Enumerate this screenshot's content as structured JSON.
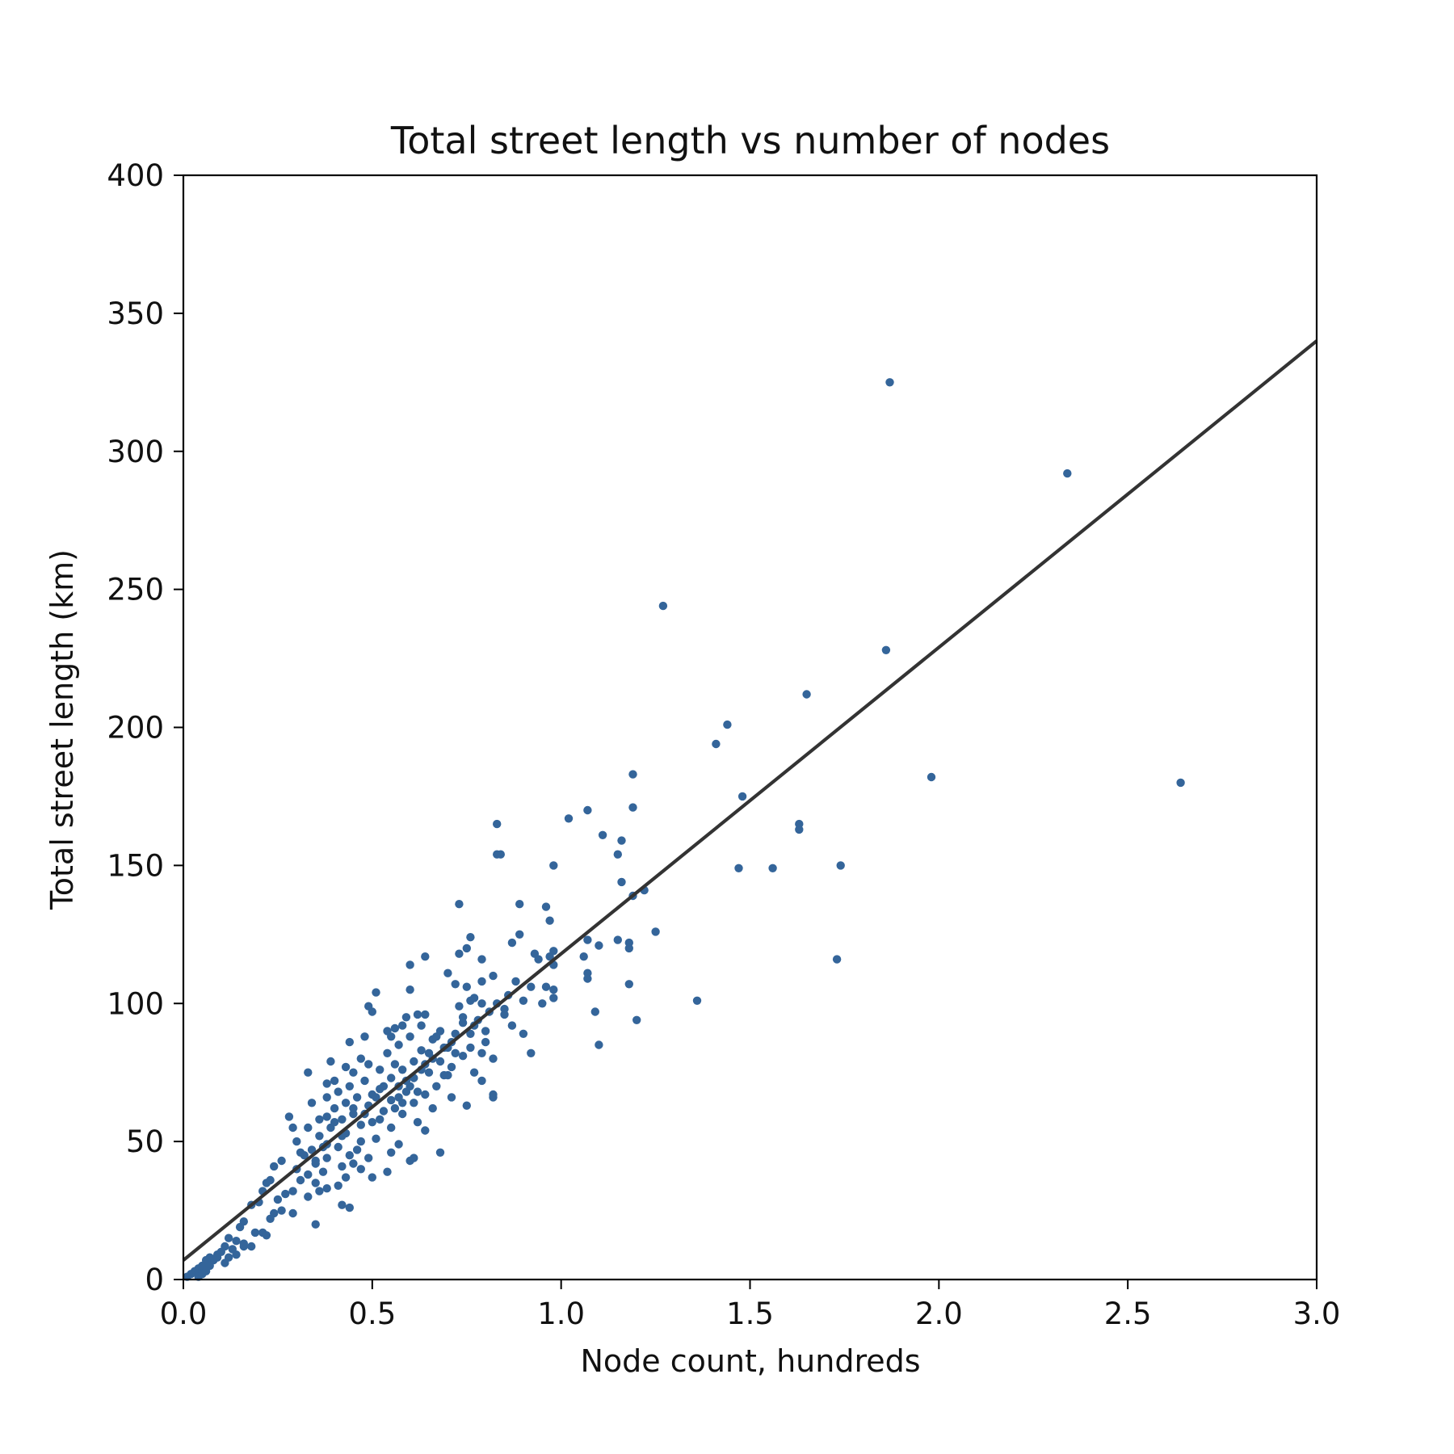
{
  "chart_data": {
    "type": "scatter",
    "title": "Total street length vs number of nodes",
    "xlabel": "Node count, hundreds",
    "ylabel": "Total street length (km)",
    "xlim": [
      0,
      3
    ],
    "ylim": [
      0,
      400
    ],
    "xticks": [
      0.0,
      0.5,
      1.0,
      1.5,
      2.0,
      2.5,
      3.0
    ],
    "xtick_labels": [
      "0.0",
      "0.5",
      "1.0",
      "1.5",
      "2.0",
      "2.5",
      "3.0"
    ],
    "yticks": [
      0,
      50,
      100,
      150,
      200,
      250,
      300,
      350,
      400
    ],
    "ytick_labels": [
      "0",
      "50",
      "100",
      "150",
      "200",
      "250",
      "300",
      "350",
      "400"
    ],
    "grid": false,
    "legend": "none",
    "colors": {
      "points": "#34659a",
      "fit_line": "#333333",
      "axes": "#000000"
    },
    "fit_line": {
      "x": [
        0,
        3
      ],
      "y": [
        7,
        340
      ]
    },
    "points": [
      [
        1.87,
        325
      ],
      [
        2.34,
        292
      ],
      [
        1.27,
        244
      ],
      [
        1.86,
        228
      ],
      [
        1.65,
        212
      ],
      [
        1.44,
        201
      ],
      [
        1.41,
        194
      ],
      [
        1.98,
        182
      ],
      [
        2.64,
        180
      ],
      [
        1.48,
        175
      ],
      [
        1.19,
        183
      ],
      [
        1.19,
        171
      ],
      [
        1.07,
        170
      ],
      [
        1.02,
        167
      ],
      [
        0.83,
        165
      ],
      [
        1.63,
        165
      ],
      [
        1.63,
        163
      ],
      [
        1.11,
        161
      ],
      [
        1.16,
        159
      ],
      [
        1.15,
        154
      ],
      [
        0.83,
        154
      ],
      [
        0.84,
        154
      ],
      [
        0.98,
        150
      ],
      [
        1.47,
        149
      ],
      [
        1.56,
        149
      ],
      [
        1.74,
        150
      ],
      [
        1.16,
        144
      ],
      [
        1.22,
        141
      ],
      [
        1.19,
        139
      ],
      [
        0.73,
        136
      ],
      [
        0.89,
        136
      ],
      [
        0.96,
        135
      ],
      [
        0.97,
        130
      ],
      [
        1.25,
        126
      ],
      [
        0.89,
        125
      ],
      [
        0.76,
        124
      ],
      [
        1.07,
        123
      ],
      [
        1.15,
        123
      ],
      [
        1.1,
        121
      ],
      [
        0.87,
        122
      ],
      [
        1.18,
        122
      ],
      [
        1.18,
        120
      ],
      [
        0.75,
        120
      ],
      [
        0.73,
        118
      ],
      [
        0.98,
        119
      ],
      [
        0.93,
        118
      ],
      [
        0.97,
        117
      ],
      [
        0.94,
        116
      ],
      [
        1.06,
        117
      ],
      [
        0.64,
        117
      ],
      [
        1.73,
        116
      ],
      [
        0.79,
        116
      ],
      [
        0.6,
        114
      ],
      [
        0.98,
        114
      ],
      [
        0.7,
        111
      ],
      [
        0.82,
        110
      ],
      [
        1.07,
        111
      ],
      [
        1.07,
        109
      ],
      [
        0.79,
        108
      ],
      [
        1.18,
        107
      ],
      [
        0.72,
        107
      ],
      [
        0.75,
        106
      ],
      [
        0.96,
        106
      ],
      [
        0.92,
        106
      ],
      [
        0.98,
        105
      ],
      [
        0.51,
        104
      ],
      [
        0.6,
        105
      ],
      [
        0.86,
        103
      ],
      [
        0.77,
        102
      ],
      [
        0.98,
        102
      ],
      [
        0.76,
        101
      ],
      [
        1.36,
        101
      ],
      [
        0.79,
        100
      ],
      [
        0.83,
        100
      ],
      [
        0.9,
        101
      ],
      [
        0.73,
        99
      ],
      [
        0.49,
        99
      ],
      [
        0.95,
        100
      ],
      [
        0.5,
        97
      ],
      [
        0.81,
        97
      ],
      [
        0.64,
        96
      ],
      [
        0.62,
        96
      ],
      [
        0.59,
        95
      ],
      [
        1.09,
        97
      ],
      [
        0.85,
        96
      ],
      [
        0.74,
        95
      ],
      [
        0.78,
        94
      ],
      [
        1.2,
        94
      ],
      [
        0.77,
        92
      ],
      [
        0.87,
        92
      ],
      [
        0.58,
        92
      ],
      [
        0.63,
        92
      ],
      [
        0.56,
        91
      ],
      [
        0.54,
        90
      ],
      [
        0.68,
        90
      ],
      [
        0.72,
        89
      ],
      [
        0.9,
        89
      ],
      [
        0.55,
        88
      ],
      [
        0.48,
        88
      ],
      [
        0.6,
        88
      ],
      [
        0.66,
        87
      ],
      [
        0.71,
        86
      ],
      [
        0.8,
        86
      ],
      [
        0.44,
        86
      ],
      [
        0.57,
        85
      ],
      [
        1.1,
        85
      ],
      [
        0.69,
        84
      ],
      [
        0.76,
        84
      ],
      [
        0.63,
        83
      ],
      [
        0.54,
        82
      ],
      [
        0.79,
        82
      ],
      [
        0.92,
        82
      ],
      [
        0.65,
        82
      ],
      [
        0.74,
        81
      ],
      [
        0.47,
        80
      ],
      [
        0.39,
        79
      ],
      [
        0.61,
        79
      ],
      [
        0.68,
        79
      ],
      [
        0.56,
        78
      ],
      [
        0.49,
        78
      ],
      [
        0.43,
        77
      ],
      [
        0.71,
        77
      ],
      [
        0.82,
        80
      ],
      [
        0.77,
        75
      ],
      [
        0.58,
        76
      ],
      [
        0.52,
        76
      ],
      [
        0.45,
        75
      ],
      [
        0.33,
        75
      ],
      [
        0.65,
        75
      ],
      [
        0.7,
        74
      ],
      [
        0.4,
        72
      ],
      [
        0.55,
        73
      ],
      [
        0.61,
        73
      ],
      [
        0.48,
        72
      ],
      [
        0.79,
        72
      ],
      [
        0.38,
        71
      ],
      [
        0.44,
        70
      ],
      [
        0.57,
        70
      ],
      [
        0.67,
        70
      ],
      [
        0.52,
        69
      ],
      [
        0.41,
        68
      ],
      [
        0.59,
        68
      ],
      [
        0.5,
        67
      ],
      [
        0.64,
        67
      ],
      [
        0.46,
        66
      ],
      [
        0.38,
        66
      ],
      [
        0.71,
        66
      ],
      [
        0.82,
        66
      ],
      [
        0.55,
        65
      ],
      [
        0.43,
        64
      ],
      [
        0.61,
        64
      ],
      [
        0.34,
        64
      ],
      [
        0.49,
        63
      ],
      [
        0.75,
        63
      ],
      [
        0.4,
        62
      ],
      [
        0.66,
        62
      ],
      [
        0.53,
        61
      ],
      [
        0.45,
        60
      ],
      [
        0.38,
        59
      ],
      [
        0.58,
        60
      ],
      [
        0.42,
        58
      ],
      [
        0.36,
        58
      ],
      [
        0.28,
        59
      ],
      [
        0.5,
        57
      ],
      [
        0.62,
        57
      ],
      [
        0.47,
        56
      ],
      [
        0.33,
        55
      ],
      [
        0.39,
        55
      ],
      [
        0.55,
        55
      ],
      [
        0.29,
        55
      ],
      [
        0.64,
        54
      ],
      [
        0.43,
        53
      ],
      [
        0.36,
        52
      ],
      [
        0.51,
        51
      ],
      [
        0.47,
        50
      ],
      [
        0.3,
        50
      ],
      [
        0.38,
        49
      ],
      [
        0.57,
        49
      ],
      [
        0.41,
        48
      ],
      [
        0.34,
        47
      ],
      [
        0.46,
        47
      ],
      [
        0.55,
        46
      ],
      [
        0.32,
        45
      ],
      [
        0.68,
        46
      ],
      [
        0.44,
        45
      ],
      [
        0.38,
        44
      ],
      [
        0.26,
        43
      ],
      [
        0.49,
        44
      ],
      [
        0.61,
        44
      ],
      [
        0.6,
        43
      ],
      [
        0.24,
        41
      ],
      [
        0.35,
        42
      ],
      [
        0.42,
        41
      ],
      [
        0.47,
        40
      ],
      [
        0.3,
        40
      ],
      [
        0.54,
        39
      ],
      [
        0.37,
        39
      ],
      [
        0.33,
        38
      ],
      [
        0.23,
        36
      ],
      [
        0.43,
        37
      ],
      [
        0.5,
        37
      ],
      [
        0.22,
        35
      ],
      [
        0.35,
        35
      ],
      [
        0.38,
        33
      ],
      [
        0.41,
        34
      ],
      [
        0.29,
        32
      ],
      [
        0.21,
        32
      ],
      [
        0.36,
        32
      ],
      [
        0.25,
        29
      ],
      [
        0.33,
        30
      ],
      [
        0.2,
        28
      ],
      [
        0.18,
        27
      ],
      [
        0.42,
        27
      ],
      [
        0.44,
        26
      ],
      [
        0.29,
        24
      ],
      [
        0.24,
        24
      ],
      [
        0.23,
        22
      ],
      [
        0.16,
        21
      ],
      [
        0.15,
        19
      ],
      [
        0.35,
        20
      ],
      [
        0.21,
        17
      ],
      [
        0.22,
        16
      ],
      [
        0.19,
        17
      ],
      [
        0.14,
        14
      ],
      [
        0.12,
        15
      ],
      [
        0.16,
        12
      ],
      [
        0.11,
        12
      ],
      [
        0.18,
        12
      ],
      [
        0.13,
        11
      ],
      [
        0.1,
        10
      ],
      [
        0.09,
        9
      ],
      [
        0.14,
        9
      ],
      [
        0.07,
        8
      ],
      [
        0.12,
        8
      ],
      [
        0.08,
        7
      ],
      [
        0.06,
        7
      ],
      [
        0.11,
        6
      ],
      [
        0.05,
        5
      ],
      [
        0.07,
        5
      ],
      [
        0.04,
        4
      ],
      [
        0.06,
        3
      ],
      [
        0.03,
        3
      ],
      [
        0.02,
        2
      ],
      [
        0.04,
        1
      ],
      [
        0.01,
        1
      ],
      [
        0.05,
        2
      ],
      [
        0.09,
        8
      ],
      [
        0.16,
        13
      ],
      [
        0.26,
        25
      ],
      [
        0.31,
        46
      ],
      [
        0.45,
        42
      ],
      [
        0.52,
        58
      ],
      [
        0.57,
        66
      ],
      [
        0.6,
        70
      ],
      [
        0.63,
        76
      ],
      [
        0.66,
        80
      ],
      [
        0.69,
        74
      ],
      [
        0.72,
        82
      ],
      [
        0.56,
        62
      ],
      [
        0.48,
        60
      ],
      [
        0.42,
        52
      ],
      [
        0.37,
        48
      ],
      [
        0.53,
        70
      ],
      [
        0.59,
        72
      ],
      [
        0.67,
        88
      ],
      [
        0.85,
        98
      ],
      [
        0.88,
        108
      ],
      [
        0.74,
        93
      ],
      [
        0.62,
        68
      ],
      [
        0.58,
        64
      ],
      [
        0.4,
        57
      ],
      [
        0.45,
        62
      ],
      [
        0.35,
        43
      ],
      [
        0.31,
        36
      ],
      [
        0.27,
        31
      ],
      [
        0.51,
        66
      ],
      [
        0.64,
        78
      ],
      [
        0.7,
        84
      ],
      [
        0.76,
        89
      ],
      [
        0.8,
        90
      ],
      [
        0.82,
        67
      ]
    ]
  }
}
